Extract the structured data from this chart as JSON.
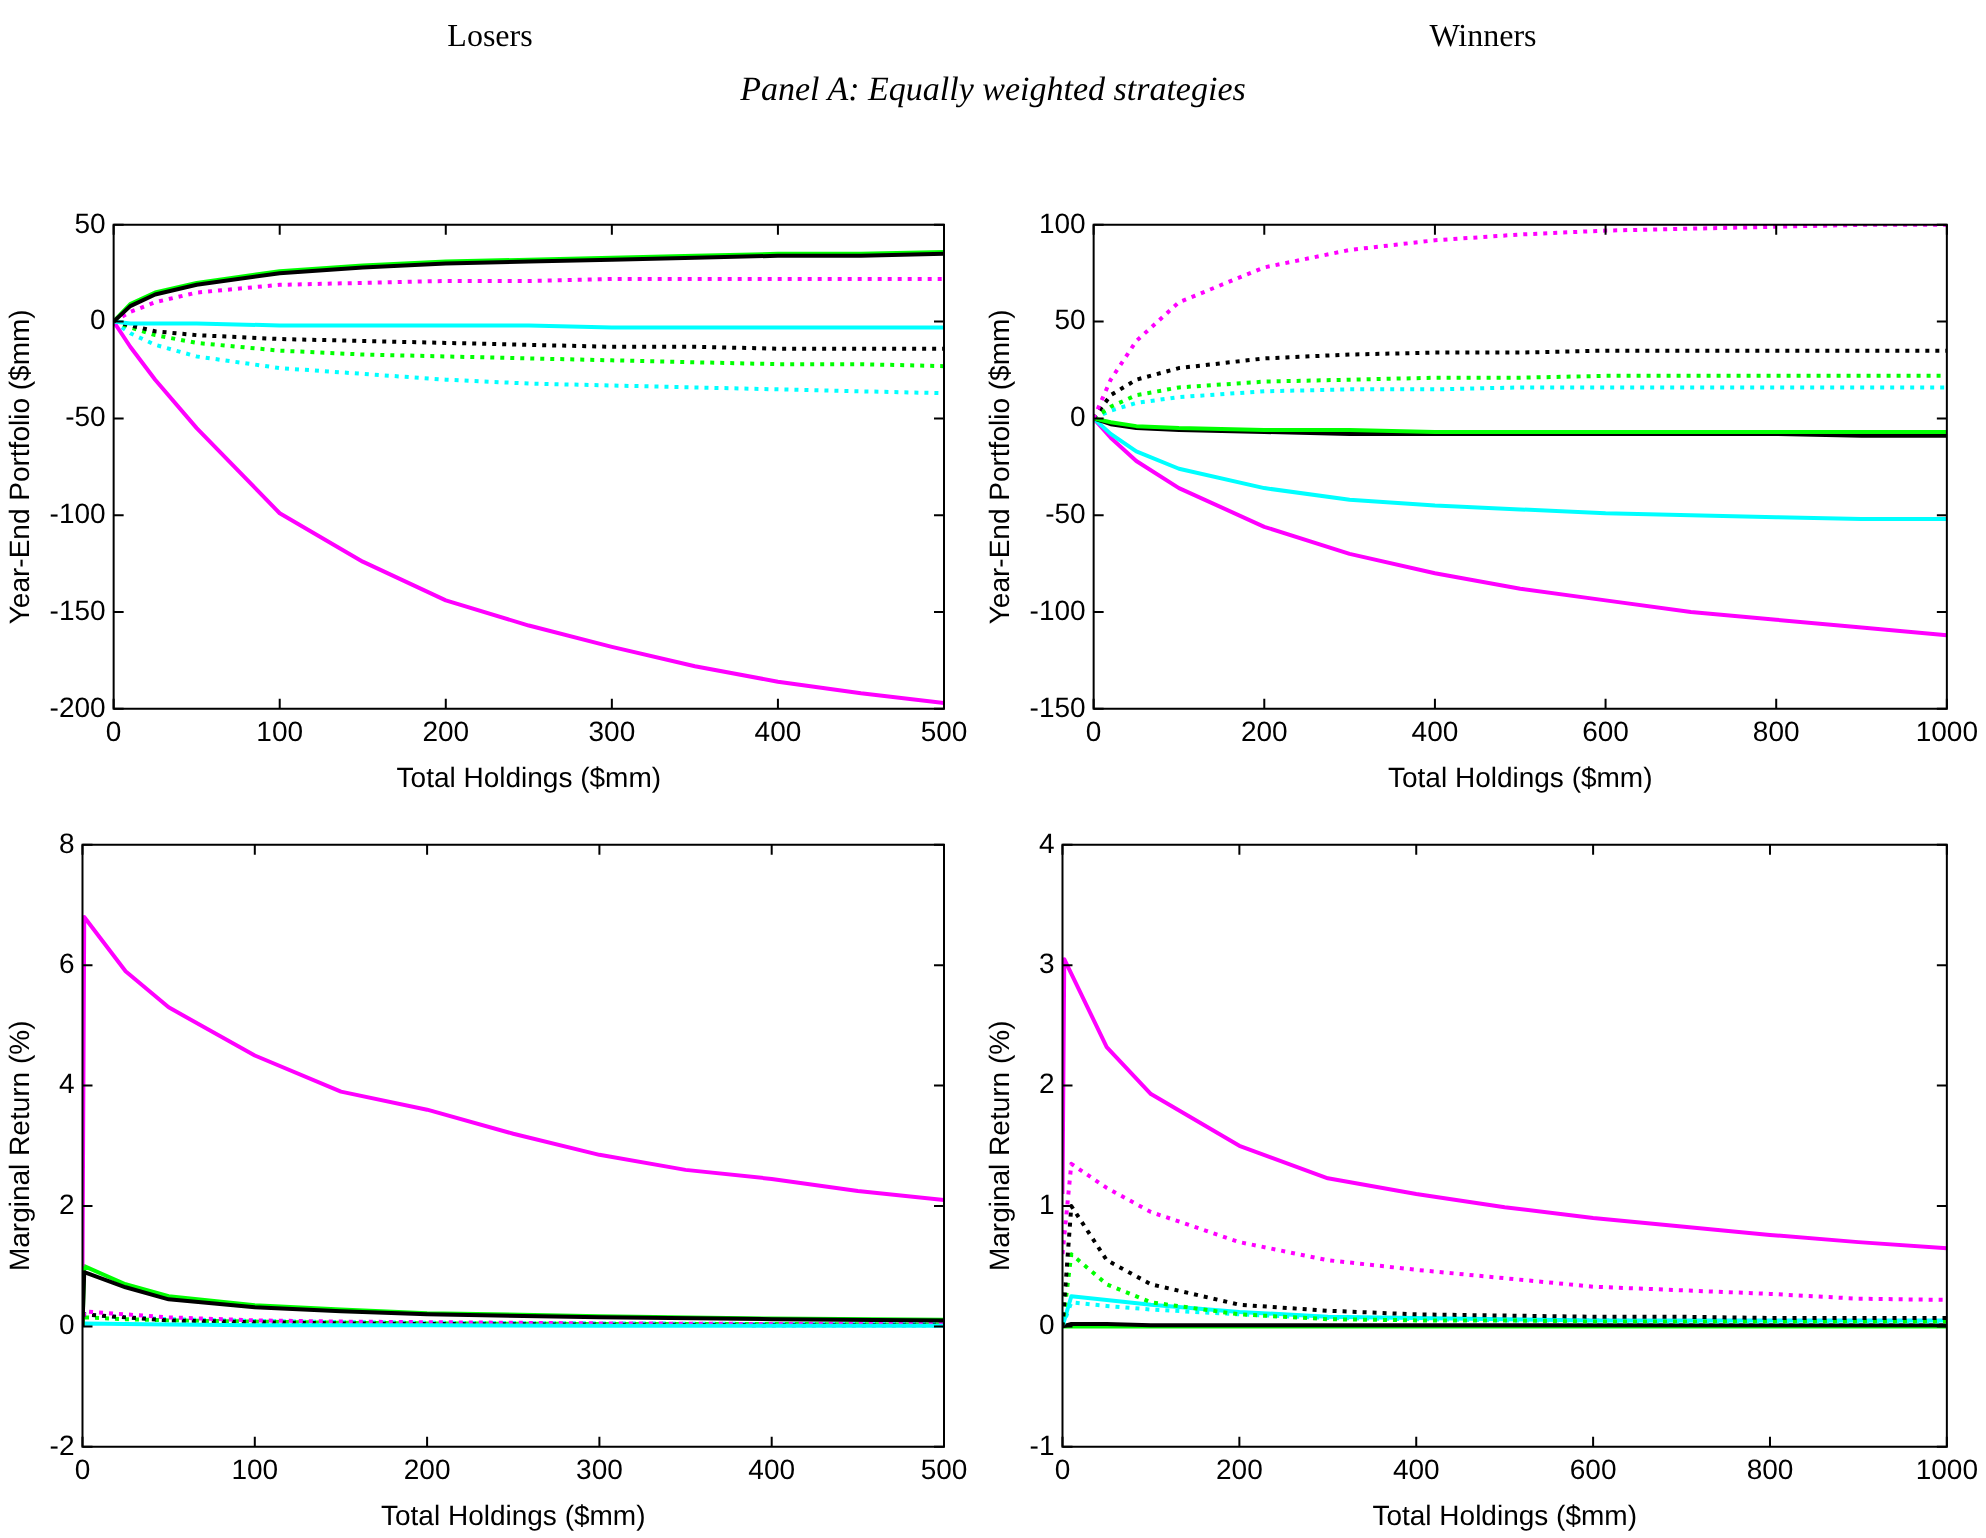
{
  "chart_data": [
    {
      "type": "line",
      "title": "Losers",
      "subtitle": "Panel A: Equally weighted strategies",
      "xlabel": "Total Holdings ($mm)",
      "ylabel": "Year-End Portfolio ($mm)",
      "xlim": [
        0,
        500
      ],
      "xticks": [
        0,
        100,
        200,
        300,
        400,
        500
      ],
      "ylim": [
        -200,
        50
      ],
      "yticks": [
        -200,
        -150,
        -100,
        -50,
        0,
        50
      ],
      "grid": false,
      "legend": false,
      "x": [
        0,
        10,
        25,
        50,
        100,
        150,
        200,
        250,
        300,
        350,
        400,
        450,
        500
      ],
      "series": [
        {
          "color": "#000000",
          "line_style": "solid",
          "values": [
            0,
            8,
            14,
            19,
            25,
            28,
            30,
            31,
            32,
            33,
            34,
            34,
            35
          ]
        },
        {
          "color": "#00ff00",
          "line_style": "solid",
          "values": [
            0,
            9,
            15,
            20,
            26,
            29,
            31,
            32,
            33,
            34,
            35,
            35,
            36
          ]
        },
        {
          "color": "#00ffff",
          "line_style": "solid",
          "values": [
            0,
            -1,
            -1,
            -1,
            -2,
            -2,
            -2,
            -2,
            -3,
            -3,
            -3,
            -3,
            -3
          ]
        },
        {
          "color": "#ff00ff",
          "line_style": "solid",
          "values": [
            0,
            -13,
            -30,
            -55,
            -99,
            -124,
            -144,
            -157,
            -168,
            -178,
            -186,
            -192,
            -197
          ]
        },
        {
          "color": "#ff00ff",
          "line_style": "dotted",
          "values": [
            0,
            5,
            10,
            15,
            19,
            20,
            21,
            21,
            22,
            22,
            22,
            22,
            22
          ]
        },
        {
          "color": "#000000",
          "line_style": "dotted",
          "values": [
            0,
            -2,
            -5,
            -7,
            -9,
            -10,
            -11,
            -12,
            -13,
            -13,
            -14,
            -14,
            -14
          ]
        },
        {
          "color": "#00ff00",
          "line_style": "dotted",
          "values": [
            0,
            -3,
            -7,
            -11,
            -15,
            -17,
            -18,
            -19,
            -20,
            -21,
            -22,
            -22,
            -23
          ]
        },
        {
          "color": "#00ffff",
          "line_style": "dotted",
          "values": [
            0,
            -6,
            -12,
            -18,
            -24,
            -27,
            -30,
            -32,
            -33,
            -34,
            -35,
            -36,
            -37
          ]
        }
      ]
    },
    {
      "type": "line",
      "title": "Winners",
      "xlabel": "Total Holdings ($mm)",
      "ylabel": "Year-End Portfolio ($mm)",
      "xlim": [
        0,
        1000
      ],
      "xticks": [
        0,
        200,
        400,
        600,
        800,
        1000
      ],
      "ylim": [
        -150,
        100
      ],
      "yticks": [
        -150,
        -100,
        -50,
        0,
        50,
        100
      ],
      "grid": false,
      "legend": false,
      "x": [
        0,
        20,
        50,
        100,
        200,
        300,
        400,
        500,
        600,
        700,
        800,
        900,
        1000
      ],
      "series": [
        {
          "color": "#ff00ff",
          "line_style": "dotted",
          "values": [
            0,
            20,
            40,
            60,
            78,
            87,
            92,
            95,
            97,
            98,
            99,
            100,
            100
          ]
        },
        {
          "color": "#000000",
          "line_style": "dotted",
          "values": [
            0,
            12,
            20,
            26,
            31,
            33,
            34,
            34,
            35,
            35,
            35,
            35,
            35
          ]
        },
        {
          "color": "#00ff00",
          "line_style": "dotted",
          "values": [
            0,
            6,
            12,
            16,
            19,
            20,
            21,
            21,
            22,
            22,
            22,
            22,
            22
          ]
        },
        {
          "color": "#00ffff",
          "line_style": "dotted",
          "values": [
            0,
            4,
            8,
            11,
            14,
            15,
            15,
            16,
            16,
            16,
            16,
            16,
            16
          ]
        },
        {
          "color": "#00ff00",
          "line_style": "solid",
          "values": [
            0,
            -2,
            -4,
            -5,
            -6,
            -6,
            -7,
            -7,
            -7,
            -7,
            -7,
            -7,
            -7
          ]
        },
        {
          "color": "#000000",
          "line_style": "solid",
          "values": [
            0,
            -3,
            -5,
            -6,
            -7,
            -8,
            -8,
            -8,
            -8,
            -8,
            -8,
            -9,
            -9
          ]
        },
        {
          "color": "#00ffff",
          "line_style": "solid",
          "values": [
            0,
            -8,
            -17,
            -26,
            -36,
            -42,
            -45,
            -47,
            -49,
            -50,
            -51,
            -52,
            -52
          ]
        },
        {
          "color": "#ff00ff",
          "line_style": "solid",
          "values": [
            0,
            -10,
            -22,
            -36,
            -56,
            -70,
            -80,
            -88,
            -94,
            -100,
            -104,
            -108,
            -112
          ]
        }
      ]
    },
    {
      "type": "line",
      "xlabel": "Total Holdings ($mm)",
      "ylabel": "Marginal Return (%)",
      "xlim": [
        0,
        500
      ],
      "xticks": [
        0,
        100,
        200,
        300,
        400,
        500
      ],
      "ylim": [
        -2,
        8
      ],
      "yticks": [
        -2,
        0,
        2,
        4,
        6,
        8
      ],
      "grid": false,
      "legend": false,
      "x": [
        0,
        1,
        25,
        50,
        100,
        150,
        200,
        300,
        400,
        500
      ],
      "series": [
        {
          "color": "#ff00ff",
          "line_style": "solid",
          "x": [
            0,
            1,
            25,
            50,
            100,
            150,
            200,
            250,
            300,
            350,
            400,
            450,
            500
          ],
          "values": [
            1,
            6.8,
            5.9,
            5.3,
            4.5,
            3.9,
            3.6,
            3.2,
            2.85,
            2.6,
            2.45,
            2.25,
            2.1
          ]
        },
        {
          "color": "#000000",
          "line_style": "solid",
          "values": [
            0,
            0.9,
            0.65,
            0.45,
            0.32,
            0.25,
            0.2,
            0.15,
            0.12,
            0.1
          ]
        },
        {
          "color": "#00ff00",
          "line_style": "solid",
          "values": [
            0,
            1,
            0.7,
            0.5,
            0.35,
            0.28,
            0.22,
            0.17,
            0.13,
            0.11
          ]
        },
        {
          "color": "#00ffff",
          "line_style": "solid",
          "values": [
            0,
            0.05,
            0.04,
            0.03,
            0.02,
            0.02,
            0.02,
            0.01,
            0.01,
            0.01
          ]
        },
        {
          "color": "#ff00ff",
          "line_style": "dotted",
          "values": [
            0,
            0.25,
            0.2,
            0.15,
            0.1,
            0.08,
            0.07,
            0.05,
            0.04,
            0.04
          ]
        },
        {
          "color": "#000000",
          "line_style": "dotted",
          "values": [
            0,
            0.2,
            0.15,
            0.1,
            0.07,
            0.05,
            0.04,
            0.03,
            0.02,
            0.02
          ]
        },
        {
          "color": "#00ff00",
          "line_style": "dotted",
          "values": [
            0,
            0.15,
            0.12,
            0.1,
            0.08,
            0.06,
            0.05,
            0.04,
            0.04,
            0.03
          ]
        },
        {
          "color": "#00ffff",
          "line_style": "dotted",
          "values": [
            0,
            0.2,
            0.15,
            0.12,
            0.09,
            0.07,
            0.06,
            0.05,
            0.04,
            0.04
          ]
        }
      ]
    },
    {
      "type": "line",
      "xlabel": "Total Holdings ($mm)",
      "ylabel": "Marginal Return (%)",
      "xlim": [
        0,
        1000
      ],
      "xticks": [
        0,
        200,
        400,
        600,
        800,
        1000
      ],
      "ylim": [
        -1,
        4
      ],
      "yticks": [
        -1,
        0,
        1,
        2,
        3,
        4
      ],
      "grid": false,
      "legend": false,
      "x": [
        0,
        10,
        50,
        100,
        200,
        300,
        400,
        500,
        600,
        700,
        800,
        900,
        1000
      ],
      "series": [
        {
          "color": "#ff00ff",
          "line_style": "solid",
          "x": [
            0,
            2,
            50,
            100,
            200,
            300,
            400,
            500,
            600,
            700,
            800,
            900,
            1000
          ],
          "values": [
            1.1,
            3.05,
            2.32,
            1.93,
            1.5,
            1.23,
            1.1,
            0.99,
            0.9,
            0.83,
            0.76,
            0.7,
            0.65
          ]
        },
        {
          "color": "#ff00ff",
          "line_style": "dotted",
          "values": [
            0.6,
            1.35,
            1.15,
            0.95,
            0.7,
            0.55,
            0.47,
            0.4,
            0.33,
            0.3,
            0.27,
            0.23,
            0.22
          ]
        },
        {
          "color": "#000000",
          "line_style": "dotted",
          "values": [
            0,
            1,
            0.55,
            0.35,
            0.18,
            0.13,
            0.1,
            0.09,
            0.08,
            0.08,
            0.07,
            0.07,
            0.07
          ]
        },
        {
          "color": "#00ff00",
          "line_style": "dotted",
          "values": [
            0,
            0.6,
            0.35,
            0.2,
            0.1,
            0.06,
            0.05,
            0.05,
            0.04,
            0.04,
            0.04,
            0.04,
            0.04
          ]
        },
        {
          "color": "#00ffff",
          "line_style": "solid",
          "values": [
            0,
            0.25,
            0.22,
            0.18,
            0.12,
            0.08,
            0.07,
            0.06,
            0.05,
            0.05,
            0.05,
            0.05,
            0.05
          ]
        },
        {
          "color": "#00ffff",
          "line_style": "dotted",
          "values": [
            0,
            0.2,
            0.17,
            0.14,
            0.1,
            0.07,
            0.06,
            0.05,
            0.05,
            0.04,
            0.04,
            0.04,
            0.04
          ]
        },
        {
          "color": "#000000",
          "line_style": "solid",
          "values": [
            0,
            0.02,
            0.02,
            0.01,
            0.01,
            0.01,
            0.01,
            0.01,
            0.01,
            0.01,
            0.01,
            0.01,
            0.01
          ]
        },
        {
          "color": "#00ff00",
          "line_style": "solid",
          "values": [
            0,
            0,
            0,
            0,
            0,
            0,
            0,
            0,
            0,
            0,
            0,
            0,
            0
          ]
        }
      ]
    }
  ]
}
